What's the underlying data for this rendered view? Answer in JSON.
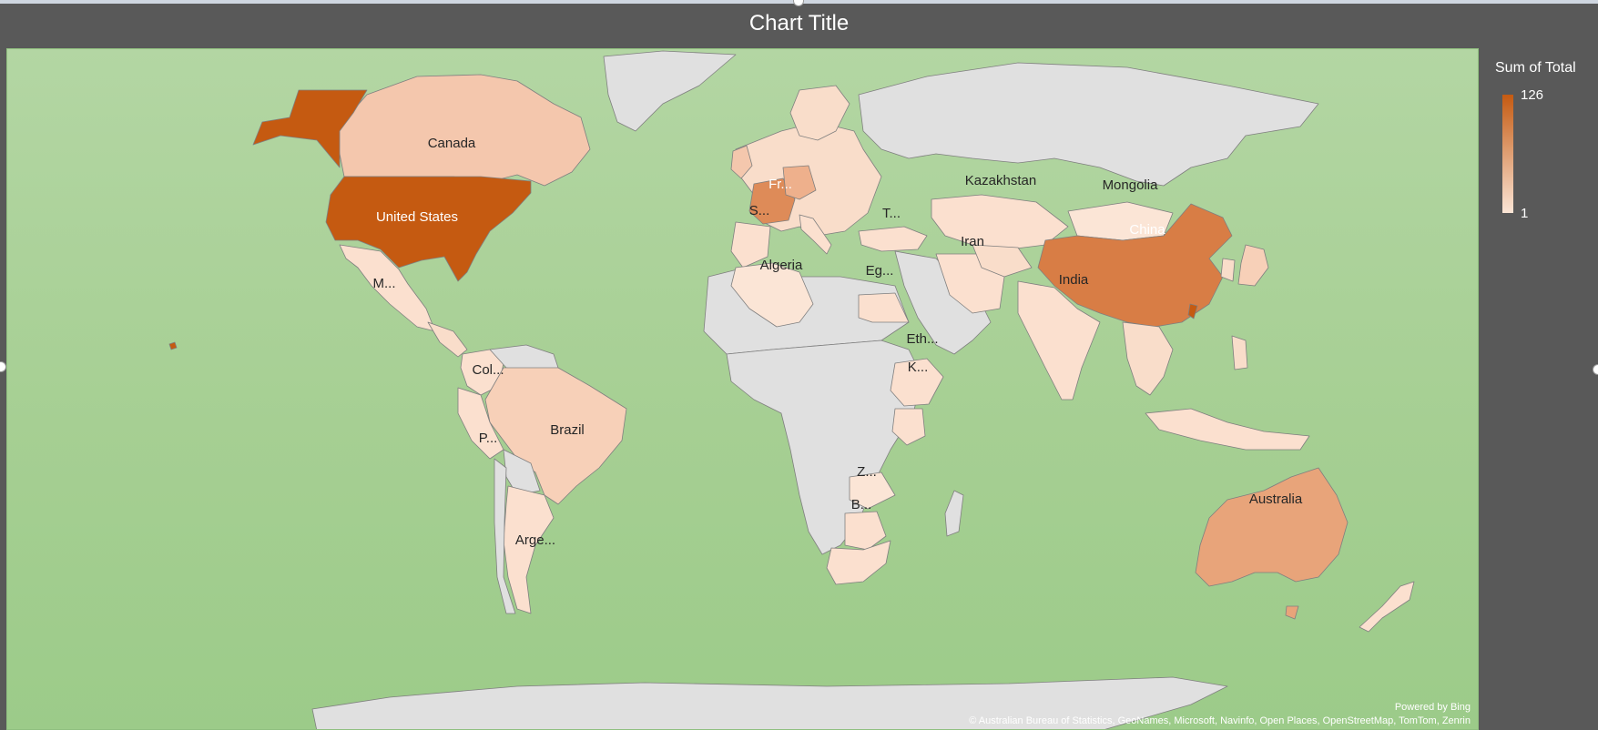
{
  "chart": {
    "title": "Chart Title",
    "legend": {
      "title": "Sum of Total",
      "max_label": "126",
      "min_label": "1",
      "color_high": "#c55a11",
      "color_low": "#fbe5d6"
    },
    "powered_by": "Powered by Bing",
    "attribution": "© Australian Bureau of Statistics, GeoNames, Microsoft, Navinfo, Open Places, OpenStreetMap, TomTom, Zenrin"
  },
  "colors": {
    "frame": "#595959",
    "ocean": "#a9d18e",
    "no_data": "#e0e0e0",
    "label_dark": "#262626",
    "label_light": "#ffffff"
  },
  "chart_data": {
    "type": "map",
    "title": "Chart Title",
    "value_name": "Sum of Total",
    "value_range": [
      1,
      126
    ],
    "regions": [
      {
        "name": "United States",
        "label": "United States",
        "level": 1.0
      },
      {
        "name": "China",
        "label": "China",
        "level": 0.75
      },
      {
        "name": "France",
        "label": "Fr...",
        "level": 0.62
      },
      {
        "name": "Australia",
        "label": "Australia",
        "level": 0.45
      },
      {
        "name": "Canada",
        "label": "Canada",
        "level": 0.2
      },
      {
        "name": "Brazil",
        "label": "Brazil",
        "level": 0.18
      },
      {
        "name": "Kazakhstan",
        "label": "Kazakhstan",
        "level": 0.1
      },
      {
        "name": "Mongolia",
        "label": "Mongolia",
        "level": 0.05
      },
      {
        "name": "Iran",
        "label": "Iran",
        "level": 0.1
      },
      {
        "name": "India",
        "label": "India",
        "level": 0.08
      },
      {
        "name": "Algeria",
        "label": "Algeria",
        "level": 0.05
      },
      {
        "name": "Egypt",
        "label": "Eg...",
        "level": 0.05
      },
      {
        "name": "Spain",
        "label": "S...",
        "level": 0.1
      },
      {
        "name": "Turkey",
        "label": "T...",
        "level": 0.05
      },
      {
        "name": "Mexico",
        "label": "M...",
        "level": 0.05
      },
      {
        "name": "Colombia",
        "label": "Col...",
        "level": 0.05
      },
      {
        "name": "Peru",
        "label": "P...",
        "level": 0.05
      },
      {
        "name": "Argentina",
        "label": "Arge...",
        "level": 0.05
      },
      {
        "name": "Ethiopia",
        "label": "Eth...",
        "level": 0.05
      },
      {
        "name": "Kenya",
        "label": "K...",
        "level": 0.05
      },
      {
        "name": "Zambia",
        "label": "Z...",
        "level": 0.05
      },
      {
        "name": "Botswana",
        "label": "B...",
        "level": 0.05
      }
    ]
  }
}
